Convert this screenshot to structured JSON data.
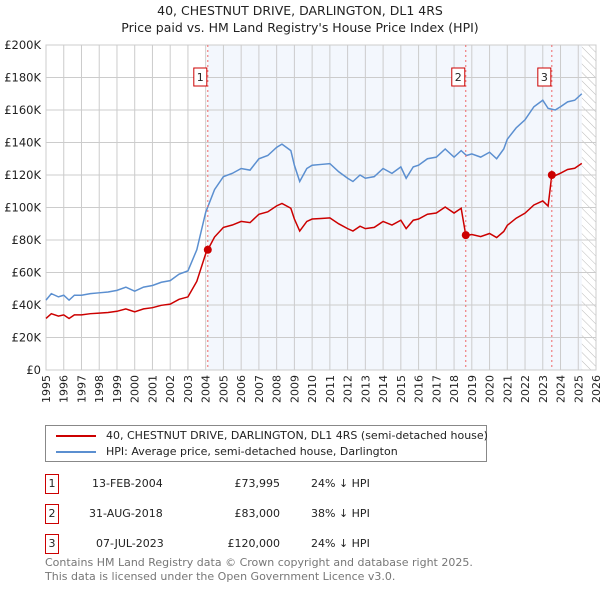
{
  "chart_data": {
    "type": "line",
    "title": "40, CHESTNUT DRIVE, DARLINGTON, DL1 4RS",
    "subtitle": "Price paid vs. HM Land Registry's House Price Index (HPI)",
    "xlim": [
      1995,
      2026
    ],
    "ylim": [
      0,
      200000
    ],
    "yticks": [
      0,
      20000,
      40000,
      60000,
      80000,
      100000,
      120000,
      140000,
      160000,
      180000,
      200000
    ],
    "ytick_labels": [
      "£0",
      "£20K",
      "£40K",
      "£60K",
      "£80K",
      "£100K",
      "£120K",
      "£140K",
      "£160K",
      "£180K",
      "£200K"
    ],
    "xticks": [
      "1995",
      "1996",
      "1997",
      "1998",
      "1999",
      "2000",
      "2001",
      "2002",
      "2003",
      "2004",
      "2005",
      "2006",
      "2007",
      "2008",
      "2009",
      "2010",
      "2011",
      "2012",
      "2013",
      "2014",
      "2015",
      "2016",
      "2017",
      "2018",
      "2019",
      "2020",
      "2021",
      "2022",
      "2023",
      "2024",
      "2025",
      "2026"
    ],
    "data_end": 2025.2,
    "grid": true,
    "legend": [
      {
        "name": "40, CHESTNUT DRIVE, DARLINGTON, DL1 4RS (semi-detached house)",
        "color": "#cc0000"
      },
      {
        "name": "HPI: Average price, semi-detached house, Darlington",
        "color": "#5b8fd0"
      }
    ],
    "hpi": {
      "x": [
        1995,
        1995.3,
        1995.7,
        1996,
        1996.3,
        1996.6,
        1997,
        1997.5,
        1998,
        1998.5,
        1999,
        1999.5,
        2000,
        2000.5,
        2001,
        2001.5,
        2002,
        2002.5,
        2003,
        2003.5,
        2004,
        2004.5,
        2005,
        2005.5,
        2006,
        2006.5,
        2007,
        2007.5,
        2008,
        2008.3,
        2008.8,
        2009,
        2009.3,
        2009.7,
        2010,
        2010.5,
        2011,
        2011.5,
        2012,
        2012.3,
        2012.7,
        2013,
        2013.5,
        2014,
        2014.5,
        2015,
        2015.3,
        2015.7,
        2016,
        2016.5,
        2017,
        2017.5,
        2018,
        2018.4,
        2018.7,
        2019,
        2019.5,
        2020,
        2020.4,
        2020.8,
        2021,
        2021.5,
        2022,
        2022.5,
        2023,
        2023.3,
        2023.7,
        2024,
        2024.4,
        2024.8,
        2025.2
      ],
      "y": [
        43000,
        47000,
        45000,
        46000,
        43000,
        46000,
        46000,
        47000,
        47500,
        48000,
        49000,
        51000,
        48500,
        51000,
        52000,
        54000,
        55000,
        59000,
        61000,
        74000,
        97000,
        111000,
        119000,
        121000,
        124000,
        123000,
        130000,
        132000,
        137000,
        139000,
        135000,
        126000,
        116000,
        124000,
        126000,
        126500,
        127000,
        122000,
        118000,
        116000,
        120000,
        118000,
        119000,
        124000,
        121000,
        125000,
        118000,
        125000,
        126000,
        130000,
        131000,
        136000,
        131000,
        135000,
        132000,
        133000,
        131000,
        134000,
        130000,
        136000,
        142000,
        149000,
        154000,
        162000,
        166000,
        161000,
        160000,
        162000,
        165000,
        166000,
        170000
      ]
    },
    "sales": [
      {
        "label": "1",
        "x": 2004.12,
        "date": "13-FEB-2004",
        "price": 73995,
        "price_label": "£73,995",
        "hpi_diff": "24% ↓ HPI"
      },
      {
        "label": "2",
        "x": 2018.66,
        "date": "31-AUG-2018",
        "price": 83000,
        "price_label": "£83,000",
        "hpi_diff": "38% ↓ HPI"
      },
      {
        "label": "3",
        "x": 2023.51,
        "date": "07-JUL-2023",
        "price": 120000,
        "price_label": "£120,000",
        "hpi_diff": "24% ↓ HPI"
      }
    ]
  },
  "footer": {
    "line1": "Contains HM Land Registry data © Crown copyright and database right 2025.",
    "line2": "This data is licensed under the Open Government Licence v3.0."
  }
}
